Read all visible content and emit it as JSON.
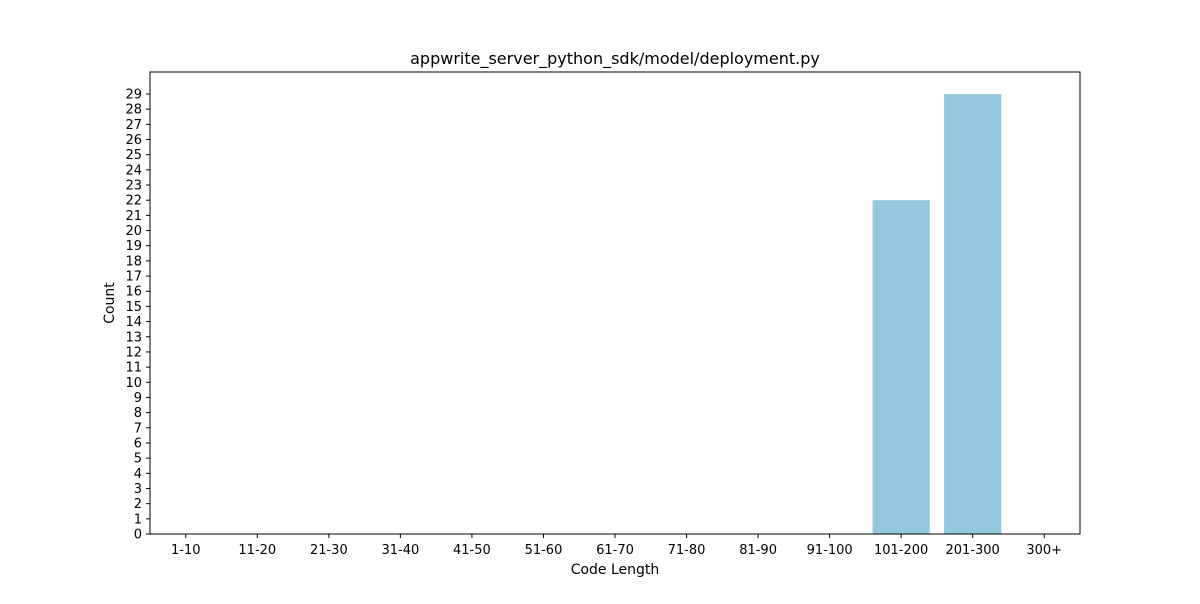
{
  "chart_data": {
    "type": "bar",
    "title": "appwrite_server_python_sdk/model/deployment.py",
    "xlabel": "Code Length",
    "ylabel": "Count",
    "categories": [
      "1-10",
      "11-20",
      "21-30",
      "31-40",
      "41-50",
      "51-60",
      "61-70",
      "71-80",
      "81-90",
      "91-100",
      "101-200",
      "201-300",
      "300+"
    ],
    "values": [
      0,
      0,
      0,
      0,
      0,
      0,
      0,
      0,
      0,
      0,
      22,
      29,
      0
    ],
    "ylim": [
      0,
      30.45
    ],
    "yticks": [
      0,
      1,
      2,
      3,
      4,
      5,
      6,
      7,
      8,
      9,
      10,
      11,
      12,
      13,
      14,
      15,
      16,
      17,
      18,
      19,
      20,
      21,
      22,
      23,
      24,
      25,
      26,
      27,
      28,
      29
    ],
    "bar_color": "#94c8dc",
    "grid": false,
    "legend": "none"
  }
}
